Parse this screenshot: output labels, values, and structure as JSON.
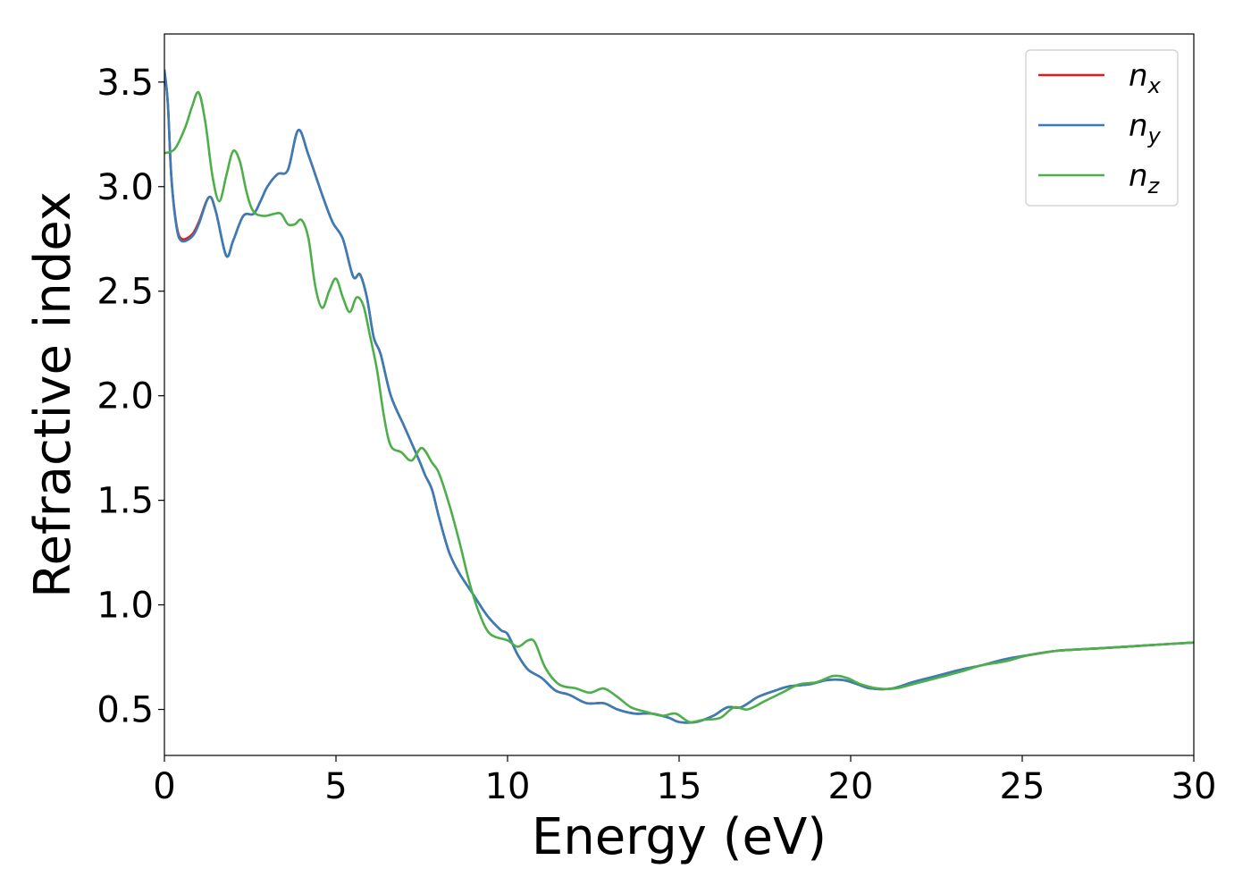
{
  "chart_data": {
    "type": "line",
    "title": "",
    "xlabel": "Energy (eV)",
    "ylabel": "Refractive index",
    "xlim": [
      0,
      30
    ],
    "ylim": [
      0.28,
      3.73
    ],
    "xticks": [
      0,
      5,
      10,
      15,
      20,
      25,
      30
    ],
    "xtick_labels": [
      "0",
      "5",
      "10",
      "15",
      "20",
      "25",
      "30"
    ],
    "yticks": [
      0.5,
      1.0,
      1.5,
      2.0,
      2.5,
      3.0,
      3.5
    ],
    "ytick_labels": [
      "0.5",
      "1.0",
      "1.5",
      "2.0",
      "2.5",
      "3.0",
      "3.5"
    ],
    "grid": false,
    "legend_position": "top-right",
    "series": [
      {
        "name": "n_x",
        "label_base": "n",
        "label_sub": "x",
        "color": "#e41a1c",
        "points": [
          [
            0,
            3.55
          ],
          [
            0.1,
            3.4
          ],
          [
            0.2,
            3.05
          ],
          [
            0.35,
            2.82
          ],
          [
            0.5,
            2.75
          ],
          [
            0.8,
            2.77
          ],
          [
            1.0,
            2.83
          ],
          [
            1.3,
            2.95
          ],
          [
            1.5,
            2.88
          ],
          [
            1.8,
            2.67
          ],
          [
            2.0,
            2.74
          ],
          [
            2.3,
            2.86
          ],
          [
            2.6,
            2.87
          ],
          [
            2.8,
            2.93
          ],
          [
            3.0,
            3.0
          ],
          [
            3.3,
            3.06
          ],
          [
            3.6,
            3.08
          ],
          [
            3.9,
            3.27
          ],
          [
            4.2,
            3.15
          ],
          [
            4.6,
            2.96
          ],
          [
            4.9,
            2.83
          ],
          [
            5.2,
            2.75
          ],
          [
            5.5,
            2.57
          ],
          [
            5.7,
            2.58
          ],
          [
            5.9,
            2.47
          ],
          [
            6.1,
            2.28
          ],
          [
            6.3,
            2.2
          ],
          [
            6.6,
            2.0
          ],
          [
            7.0,
            1.85
          ],
          [
            7.4,
            1.7
          ],
          [
            7.6,
            1.62
          ],
          [
            7.8,
            1.55
          ],
          [
            8.0,
            1.42
          ],
          [
            8.3,
            1.25
          ],
          [
            8.6,
            1.15
          ],
          [
            9.0,
            1.05
          ],
          [
            9.4,
            0.95
          ],
          [
            9.8,
            0.88
          ],
          [
            10.0,
            0.86
          ],
          [
            10.3,
            0.76
          ],
          [
            10.6,
            0.69
          ],
          [
            11.0,
            0.65
          ],
          [
            11.4,
            0.59
          ],
          [
            11.8,
            0.57
          ],
          [
            12.3,
            0.53
          ],
          [
            12.8,
            0.53
          ],
          [
            13.2,
            0.5
          ],
          [
            13.7,
            0.48
          ],
          [
            14.2,
            0.48
          ],
          [
            14.7,
            0.46
          ],
          [
            15.0,
            0.44
          ],
          [
            15.5,
            0.44
          ],
          [
            16.0,
            0.47
          ],
          [
            16.4,
            0.51
          ],
          [
            16.8,
            0.51
          ],
          [
            17.3,
            0.56
          ],
          [
            17.8,
            0.59
          ],
          [
            18.2,
            0.61
          ],
          [
            18.8,
            0.62
          ],
          [
            19.3,
            0.64
          ],
          [
            19.8,
            0.64
          ],
          [
            20.2,
            0.62
          ],
          [
            20.6,
            0.6
          ],
          [
            21.2,
            0.6
          ],
          [
            21.8,
            0.63
          ],
          [
            22.5,
            0.66
          ],
          [
            23.2,
            0.69
          ],
          [
            23.8,
            0.71
          ],
          [
            24.5,
            0.74
          ],
          [
            25.2,
            0.76
          ],
          [
            26.0,
            0.78
          ],
          [
            27.0,
            0.79
          ],
          [
            28.0,
            0.8
          ],
          [
            29.0,
            0.81
          ],
          [
            30.0,
            0.82
          ]
        ]
      },
      {
        "name": "n_y",
        "label_base": "n",
        "label_sub": "y",
        "color": "#377eb8",
        "points": [
          [
            0,
            3.56
          ],
          [
            0.1,
            3.4
          ],
          [
            0.2,
            3.05
          ],
          [
            0.35,
            2.81
          ],
          [
            0.5,
            2.74
          ],
          [
            0.8,
            2.76
          ],
          [
            1.0,
            2.82
          ],
          [
            1.3,
            2.95
          ],
          [
            1.5,
            2.88
          ],
          [
            1.8,
            2.67
          ],
          [
            2.0,
            2.74
          ],
          [
            2.3,
            2.86
          ],
          [
            2.6,
            2.87
          ],
          [
            2.8,
            2.93
          ],
          [
            3.0,
            3.0
          ],
          [
            3.3,
            3.06
          ],
          [
            3.6,
            3.08
          ],
          [
            3.9,
            3.27
          ],
          [
            4.2,
            3.15
          ],
          [
            4.6,
            2.96
          ],
          [
            4.9,
            2.83
          ],
          [
            5.2,
            2.75
          ],
          [
            5.5,
            2.57
          ],
          [
            5.7,
            2.58
          ],
          [
            5.9,
            2.47
          ],
          [
            6.1,
            2.28
          ],
          [
            6.3,
            2.2
          ],
          [
            6.6,
            2.0
          ],
          [
            7.0,
            1.85
          ],
          [
            7.4,
            1.7
          ],
          [
            7.6,
            1.62
          ],
          [
            7.8,
            1.55
          ],
          [
            8.0,
            1.42
          ],
          [
            8.3,
            1.25
          ],
          [
            8.6,
            1.15
          ],
          [
            9.0,
            1.05
          ],
          [
            9.4,
            0.95
          ],
          [
            9.8,
            0.88
          ],
          [
            10.0,
            0.86
          ],
          [
            10.3,
            0.76
          ],
          [
            10.6,
            0.69
          ],
          [
            11.0,
            0.65
          ],
          [
            11.4,
            0.59
          ],
          [
            11.8,
            0.57
          ],
          [
            12.3,
            0.53
          ],
          [
            12.8,
            0.53
          ],
          [
            13.2,
            0.5
          ],
          [
            13.7,
            0.48
          ],
          [
            14.2,
            0.48
          ],
          [
            14.7,
            0.46
          ],
          [
            15.0,
            0.44
          ],
          [
            15.5,
            0.44
          ],
          [
            16.0,
            0.47
          ],
          [
            16.4,
            0.51
          ],
          [
            16.8,
            0.51
          ],
          [
            17.3,
            0.56
          ],
          [
            17.8,
            0.59
          ],
          [
            18.2,
            0.61
          ],
          [
            18.8,
            0.62
          ],
          [
            19.3,
            0.64
          ],
          [
            19.8,
            0.64
          ],
          [
            20.2,
            0.62
          ],
          [
            20.6,
            0.6
          ],
          [
            21.2,
            0.6
          ],
          [
            21.8,
            0.63
          ],
          [
            22.5,
            0.66
          ],
          [
            23.2,
            0.69
          ],
          [
            23.8,
            0.71
          ],
          [
            24.5,
            0.74
          ],
          [
            25.2,
            0.76
          ],
          [
            26.0,
            0.78
          ],
          [
            27.0,
            0.79
          ],
          [
            28.0,
            0.8
          ],
          [
            29.0,
            0.81
          ],
          [
            30.0,
            0.82
          ]
        ]
      },
      {
        "name": "n_z",
        "label_base": "n",
        "label_sub": "z",
        "color": "#4daf4a",
        "points": [
          [
            0,
            3.16
          ],
          [
            0.3,
            3.18
          ],
          [
            0.6,
            3.28
          ],
          [
            0.8,
            3.38
          ],
          [
            1.0,
            3.45
          ],
          [
            1.2,
            3.3
          ],
          [
            1.4,
            3.05
          ],
          [
            1.6,
            2.93
          ],
          [
            1.8,
            3.05
          ],
          [
            2.0,
            3.17
          ],
          [
            2.2,
            3.12
          ],
          [
            2.4,
            2.97
          ],
          [
            2.6,
            2.88
          ],
          [
            2.9,
            2.86
          ],
          [
            3.2,
            2.87
          ],
          [
            3.4,
            2.87
          ],
          [
            3.6,
            2.82
          ],
          [
            3.8,
            2.82
          ],
          [
            4.0,
            2.84
          ],
          [
            4.2,
            2.75
          ],
          [
            4.4,
            2.52
          ],
          [
            4.6,
            2.42
          ],
          [
            4.8,
            2.5
          ],
          [
            5.0,
            2.56
          ],
          [
            5.2,
            2.47
          ],
          [
            5.4,
            2.4
          ],
          [
            5.6,
            2.47
          ],
          [
            5.8,
            2.43
          ],
          [
            6.0,
            2.28
          ],
          [
            6.2,
            2.12
          ],
          [
            6.4,
            1.9
          ],
          [
            6.6,
            1.76
          ],
          [
            6.9,
            1.73
          ],
          [
            7.2,
            1.69
          ],
          [
            7.5,
            1.75
          ],
          [
            7.8,
            1.68
          ],
          [
            8.0,
            1.63
          ],
          [
            8.3,
            1.48
          ],
          [
            8.6,
            1.3
          ],
          [
            8.9,
            1.1
          ],
          [
            9.2,
            0.95
          ],
          [
            9.5,
            0.86
          ],
          [
            10.0,
            0.83
          ],
          [
            10.3,
            0.8
          ],
          [
            10.6,
            0.83
          ],
          [
            10.8,
            0.82
          ],
          [
            11.1,
            0.7
          ],
          [
            11.5,
            0.62
          ],
          [
            12.0,
            0.6
          ],
          [
            12.4,
            0.58
          ],
          [
            12.8,
            0.6
          ],
          [
            13.2,
            0.56
          ],
          [
            13.6,
            0.51
          ],
          [
            14.0,
            0.49
          ],
          [
            14.5,
            0.47
          ],
          [
            14.9,
            0.48
          ],
          [
            15.3,
            0.44
          ],
          [
            15.7,
            0.45
          ],
          [
            16.2,
            0.46
          ],
          [
            16.6,
            0.51
          ],
          [
            17.0,
            0.5
          ],
          [
            17.5,
            0.54
          ],
          [
            18.0,
            0.58
          ],
          [
            18.5,
            0.62
          ],
          [
            19.0,
            0.63
          ],
          [
            19.5,
            0.66
          ],
          [
            19.9,
            0.65
          ],
          [
            20.3,
            0.62
          ],
          [
            20.8,
            0.6
          ],
          [
            21.3,
            0.6
          ],
          [
            21.8,
            0.62
          ],
          [
            22.5,
            0.65
          ],
          [
            23.2,
            0.68
          ],
          [
            23.8,
            0.71
          ],
          [
            24.5,
            0.73
          ],
          [
            25.2,
            0.76
          ],
          [
            26.0,
            0.78
          ],
          [
            27.0,
            0.79
          ],
          [
            28.0,
            0.8
          ],
          [
            29.0,
            0.81
          ],
          [
            30.0,
            0.82
          ]
        ]
      }
    ]
  }
}
